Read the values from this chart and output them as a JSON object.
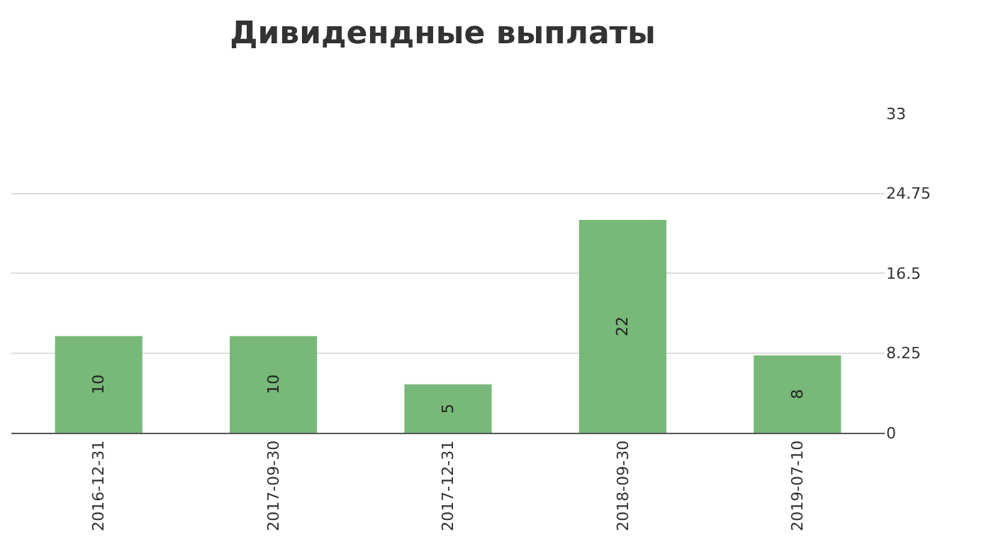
{
  "chart_data": {
    "type": "bar",
    "title": "Дивидендные выплаты",
    "categories": [
      "2016-12-31",
      "2017-09-30",
      "2017-12-31",
      "2018-09-30",
      "2019-07-10"
    ],
    "values": [
      10,
      10,
      5,
      22,
      8
    ],
    "color": "#78b878",
    "ylim": [
      0,
      33
    ],
    "yticks": [
      0,
      8.25,
      16.5,
      24.75,
      33
    ],
    "grid": "y",
    "data_labels": true
  }
}
